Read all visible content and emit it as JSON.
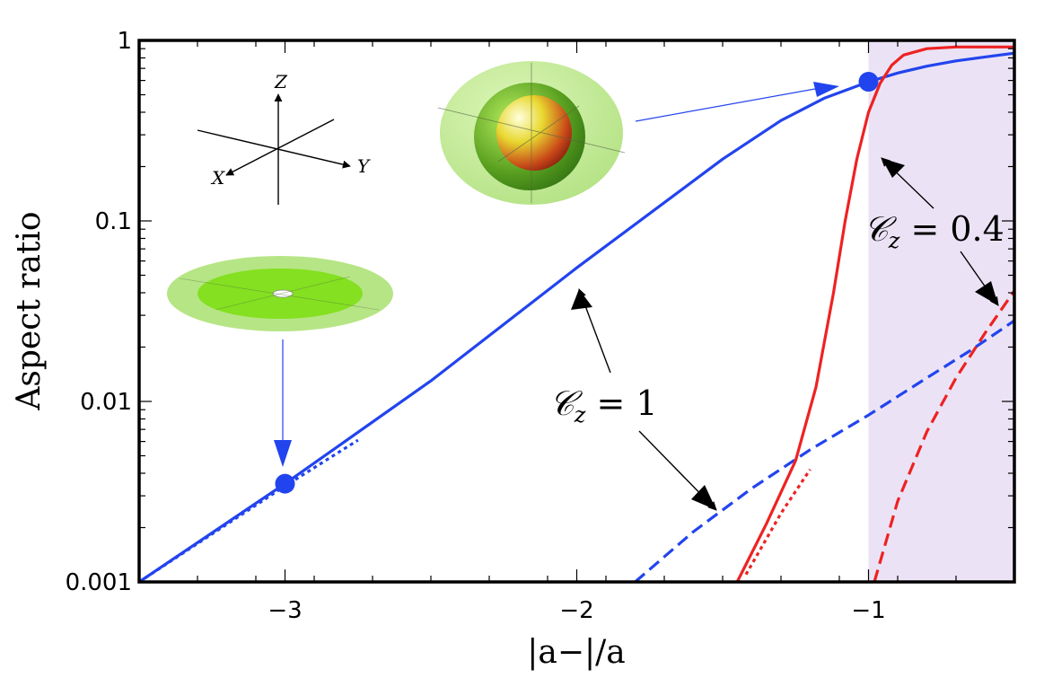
{
  "chart_data": {
    "type": "line",
    "xlabel": "|a−|/a",
    "ylabel": "Aspect ratio",
    "xlim": [
      -3.5,
      -0.5
    ],
    "ylim": [
      0.001,
      1
    ],
    "yscale": "log",
    "x_ticks": [
      {
        "value": -3,
        "label": "−3"
      },
      {
        "value": -2,
        "label": "−2"
      },
      {
        "value": -1,
        "label": "−1"
      }
    ],
    "y_ticks": [
      {
        "value": 0.001,
        "label": "0.001"
      },
      {
        "value": 0.01,
        "label": "0.01"
      },
      {
        "value": 0.1,
        "label": "0.1"
      },
      {
        "value": 1,
        "label": "1"
      }
    ],
    "shaded_region": {
      "x": [
        -1,
        -0.5
      ],
      "color": "#ebe3f5"
    },
    "grid": false,
    "series": [
      {
        "style": "solid",
        "color": "#2244ee",
        "x": [
          -3.5,
          -3.0,
          -2.5,
          -2.0,
          -1.75,
          -1.5,
          -1.3,
          -1.15,
          -1.0,
          -0.9,
          -0.8,
          -0.7,
          -0.6,
          -0.5
        ],
        "y": [
          0.001,
          0.0035,
          0.013,
          0.055,
          0.11,
          0.22,
          0.36,
          0.48,
          0.59,
          0.66,
          0.72,
          0.77,
          0.81,
          0.85
        ]
      },
      {
        "style": "dotted",
        "color": "#2244ee",
        "x": [
          -3.5,
          -3.0,
          -2.75
        ],
        "y": [
          0.001,
          0.0034,
          0.0061
        ]
      },
      {
        "style": "dashed",
        "color": "#2244ee",
        "x": [
          -1.8,
          -1.6,
          -1.4,
          -1.2,
          -1.0,
          -0.8,
          -0.65,
          -0.5
        ],
        "y": [
          0.001,
          0.0019,
          0.0033,
          0.0054,
          0.0084,
          0.0135,
          0.0192,
          0.028
        ]
      },
      {
        "style": "solid",
        "color": "#ee2222",
        "x": [
          -1.45,
          -1.35,
          -1.25,
          -1.18,
          -1.12,
          -1.08,
          -1.04,
          -1.0,
          -0.96,
          -0.92,
          -0.88,
          -0.8,
          -0.7,
          -0.6,
          -0.5
        ],
        "y": [
          0.001,
          0.0021,
          0.0047,
          0.012,
          0.04,
          0.1,
          0.22,
          0.4,
          0.58,
          0.73,
          0.83,
          0.9,
          0.92,
          0.92,
          0.92
        ]
      },
      {
        "style": "dotted",
        "color": "#ee2222",
        "x": [
          -1.42,
          -1.3,
          -1.2
        ],
        "y": [
          0.0011,
          0.0024,
          0.0042
        ]
      },
      {
        "style": "dashed",
        "color": "#ee2222",
        "x": [
          -0.98,
          -0.9,
          -0.8,
          -0.7,
          -0.6,
          -0.5
        ],
        "y": [
          0.001,
          0.0028,
          0.0068,
          0.0135,
          0.024,
          0.041
        ]
      }
    ],
    "points": [
      {
        "x": -3.0,
        "y": 0.0035,
        "color": "#2244ee"
      },
      {
        "x": -1.0,
        "y": 0.59,
        "color": "#2244ee"
      }
    ],
    "annotations": [
      {
        "id": "cz1",
        "main": "𝒞",
        "sub": "z",
        "rest": " = 1"
      },
      {
        "id": "cz04",
        "main": "𝒞",
        "sub": "z",
        "rest": " = 0.4"
      }
    ],
    "axes_inset": {
      "labels": [
        "Z",
        "X",
        "Y"
      ]
    }
  }
}
